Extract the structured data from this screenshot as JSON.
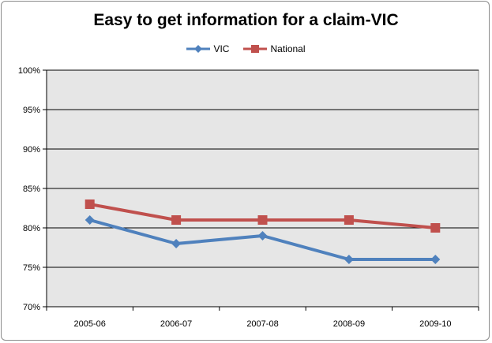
{
  "chart_data": {
    "type": "line",
    "title": "Easy to get information for a claim-VIC",
    "categories": [
      "2005-06",
      "2006-07",
      "2007-08",
      "2008-09",
      "2009-10"
    ],
    "series": [
      {
        "name": "VIC",
        "values": [
          81,
          78,
          79,
          76,
          76
        ],
        "color": "#4f81bd",
        "marker": "diamond"
      },
      {
        "name": "National",
        "values": [
          83,
          81,
          81,
          81,
          80
        ],
        "color": "#c0504d",
        "marker": "square"
      }
    ],
    "y_ticks": [
      "70%",
      "75%",
      "80%",
      "85%",
      "90%",
      "95%",
      "100%"
    ],
    "ylim": [
      70,
      100
    ],
    "grid": true,
    "legend_position": "top",
    "plot_background": "#e6e6e6"
  }
}
